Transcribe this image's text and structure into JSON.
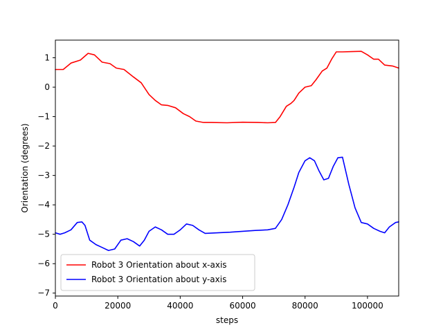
{
  "chart_data": {
    "type": "line",
    "title": "",
    "xlabel": "steps",
    "ylabel": "Orientation (degrees)",
    "xlim": [
      0,
      110000
    ],
    "ylim": [
      -7.1,
      1.6
    ],
    "xticks": [
      0,
      20000,
      40000,
      60000,
      80000,
      100000
    ],
    "xtick_labels": [
      "0",
      "20000",
      "40000",
      "60000",
      "80000",
      "100000"
    ],
    "yticks": [
      -7,
      -6,
      -5,
      -4,
      -3,
      -2,
      -1,
      0,
      1
    ],
    "ytick_labels": [
      "−7",
      "−6",
      "−5",
      "−4",
      "−3",
      "−2",
      "−1",
      "0",
      "1"
    ],
    "grid": false,
    "legend_position": "lower-left",
    "series": [
      {
        "name": "Robot 3 Orientation about x-axis",
        "color": "#ff0000",
        "x": [
          0,
          2500,
          5000,
          8000,
          10500,
          12500,
          15000,
          17500,
          19500,
          22000,
          25000,
          27500,
          30000,
          32000,
          34000,
          36000,
          38500,
          41000,
          43000,
          45000,
          47500,
          50000,
          55000,
          60000,
          65000,
          68000,
          70500,
          72000,
          74000,
          75500,
          76500,
          78000,
          80000,
          82000,
          83500,
          85500,
          87000,
          88500,
          90000,
          92000,
          95000,
          98000,
          100000,
          102000,
          103500,
          105500,
          108000,
          110000
        ],
        "y": [
          0.6,
          0.6,
          0.82,
          0.92,
          1.15,
          1.1,
          0.85,
          0.8,
          0.65,
          0.6,
          0.35,
          0.15,
          -0.25,
          -0.45,
          -0.6,
          -0.62,
          -0.7,
          -0.9,
          -1.0,
          -1.15,
          -1.2,
          -1.2,
          -1.21,
          -1.19,
          -1.2,
          -1.21,
          -1.2,
          -1.0,
          -0.65,
          -0.55,
          -0.45,
          -0.2,
          0.0,
          0.05,
          0.25,
          0.55,
          0.65,
          0.95,
          1.2,
          1.2,
          1.21,
          1.22,
          1.1,
          0.95,
          0.95,
          0.75,
          0.72,
          0.65
        ]
      },
      {
        "name": "Robot 3 Orientation about y-axis",
        "color": "#0000ff",
        "x": [
          0,
          1500,
          3000,
          5000,
          7000,
          8500,
          9500,
          11000,
          13000,
          15000,
          17000,
          19000,
          21000,
          23000,
          25000,
          27000,
          28500,
          30000,
          32000,
          34000,
          36000,
          38000,
          40000,
          42000,
          44000,
          46000,
          48000,
          52000,
          56000,
          60000,
          64000,
          68000,
          70500,
          72500,
          74500,
          76500,
          78000,
          80000,
          81500,
          83000,
          84500,
          86000,
          87500,
          89000,
          90500,
          92000,
          94000,
          96000,
          98000,
          100000,
          102000,
          104000,
          105500,
          107000,
          109000,
          110000
        ],
        "y": [
          -4.95,
          -5.0,
          -4.95,
          -4.85,
          -4.6,
          -4.58,
          -4.7,
          -5.2,
          -5.35,
          -5.45,
          -5.55,
          -5.5,
          -5.2,
          -5.15,
          -5.25,
          -5.4,
          -5.2,
          -4.9,
          -4.75,
          -4.85,
          -5.0,
          -5.0,
          -4.85,
          -4.65,
          -4.7,
          -4.85,
          -4.97,
          -4.95,
          -4.93,
          -4.9,
          -4.87,
          -4.85,
          -4.8,
          -4.5,
          -4.0,
          -3.4,
          -2.9,
          -2.5,
          -2.4,
          -2.5,
          -2.85,
          -3.15,
          -3.1,
          -2.7,
          -2.4,
          -2.38,
          -3.3,
          -4.1,
          -4.6,
          -4.65,
          -4.8,
          -4.9,
          -4.95,
          -4.75,
          -4.6,
          -4.58
        ]
      }
    ]
  }
}
